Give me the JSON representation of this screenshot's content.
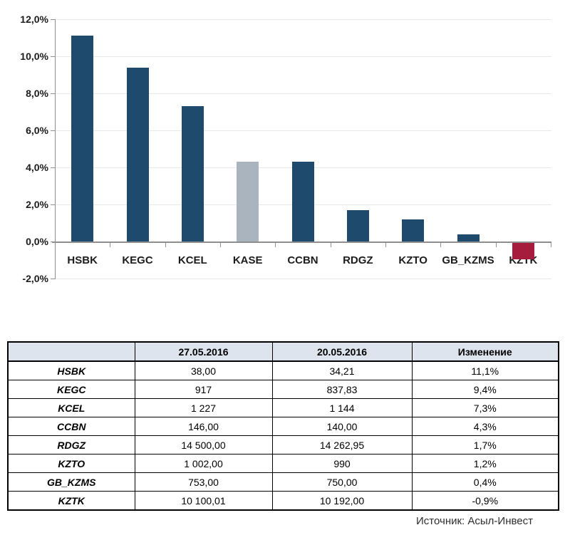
{
  "chart_data": {
    "type": "bar",
    "title": "",
    "xlabel": "",
    "ylabel": "",
    "categories": [
      "HSBK",
      "KEGC",
      "KCEL",
      "KASE",
      "CCBN",
      "RDGZ",
      "KZTO",
      "GB_KZMS",
      "KZTK"
    ],
    "values": [
      11.1,
      9.4,
      7.3,
      4.3,
      4.3,
      1.7,
      1.2,
      0.4,
      -0.9
    ],
    "bar_colors": [
      "#1e4a6e",
      "#1e4a6e",
      "#1e4a6e",
      "#aab4bf",
      "#1e4a6e",
      "#1e4a6e",
      "#1e4a6e",
      "#1e4a6e",
      "#a51c3c"
    ],
    "ylim": [
      -2,
      12
    ],
    "yticks": [
      {
        "value": 12,
        "label": "12,0%"
      },
      {
        "value": 10,
        "label": "10,0%"
      },
      {
        "value": 8,
        "label": "8,0%"
      },
      {
        "value": 6,
        "label": "6,0%"
      },
      {
        "value": 4,
        "label": "4,0%"
      },
      {
        "value": 2,
        "label": "2,0%"
      },
      {
        "value": 0,
        "label": "0,0%"
      },
      {
        "value": -2,
        "label": "-2,0%"
      }
    ],
    "grid": true,
    "legend_position": "none",
    "grid_color": "#e9e9e9",
    "axis_color": "#8f8f8f"
  },
  "table": {
    "header_bg": "#dde4ee",
    "headers": [
      "",
      "27.05.2016",
      "20.05.2016",
      "Изменение"
    ],
    "rows": [
      [
        "HSBK",
        "38,00",
        "34,21",
        "11,1%"
      ],
      [
        "KEGC",
        "917",
        "837,83",
        "9,4%"
      ],
      [
        "KCEL",
        "1 227",
        "1 144",
        "7,3%"
      ],
      [
        "CCBN",
        "146,00",
        "140,00",
        "4,3%"
      ],
      [
        "RDGZ",
        "14 500,00",
        "14 262,95",
        "1,7%"
      ],
      [
        "KZTO",
        "1 002,00",
        "990",
        "1,2%"
      ],
      [
        "GB_KZMS",
        "753,00",
        "750,00",
        "0,4%"
      ],
      [
        "KZTK",
        "10 100,01",
        "10 192,00",
        "-0,9%"
      ]
    ]
  },
  "source_note": "Источник: Асыл-Инвест"
}
